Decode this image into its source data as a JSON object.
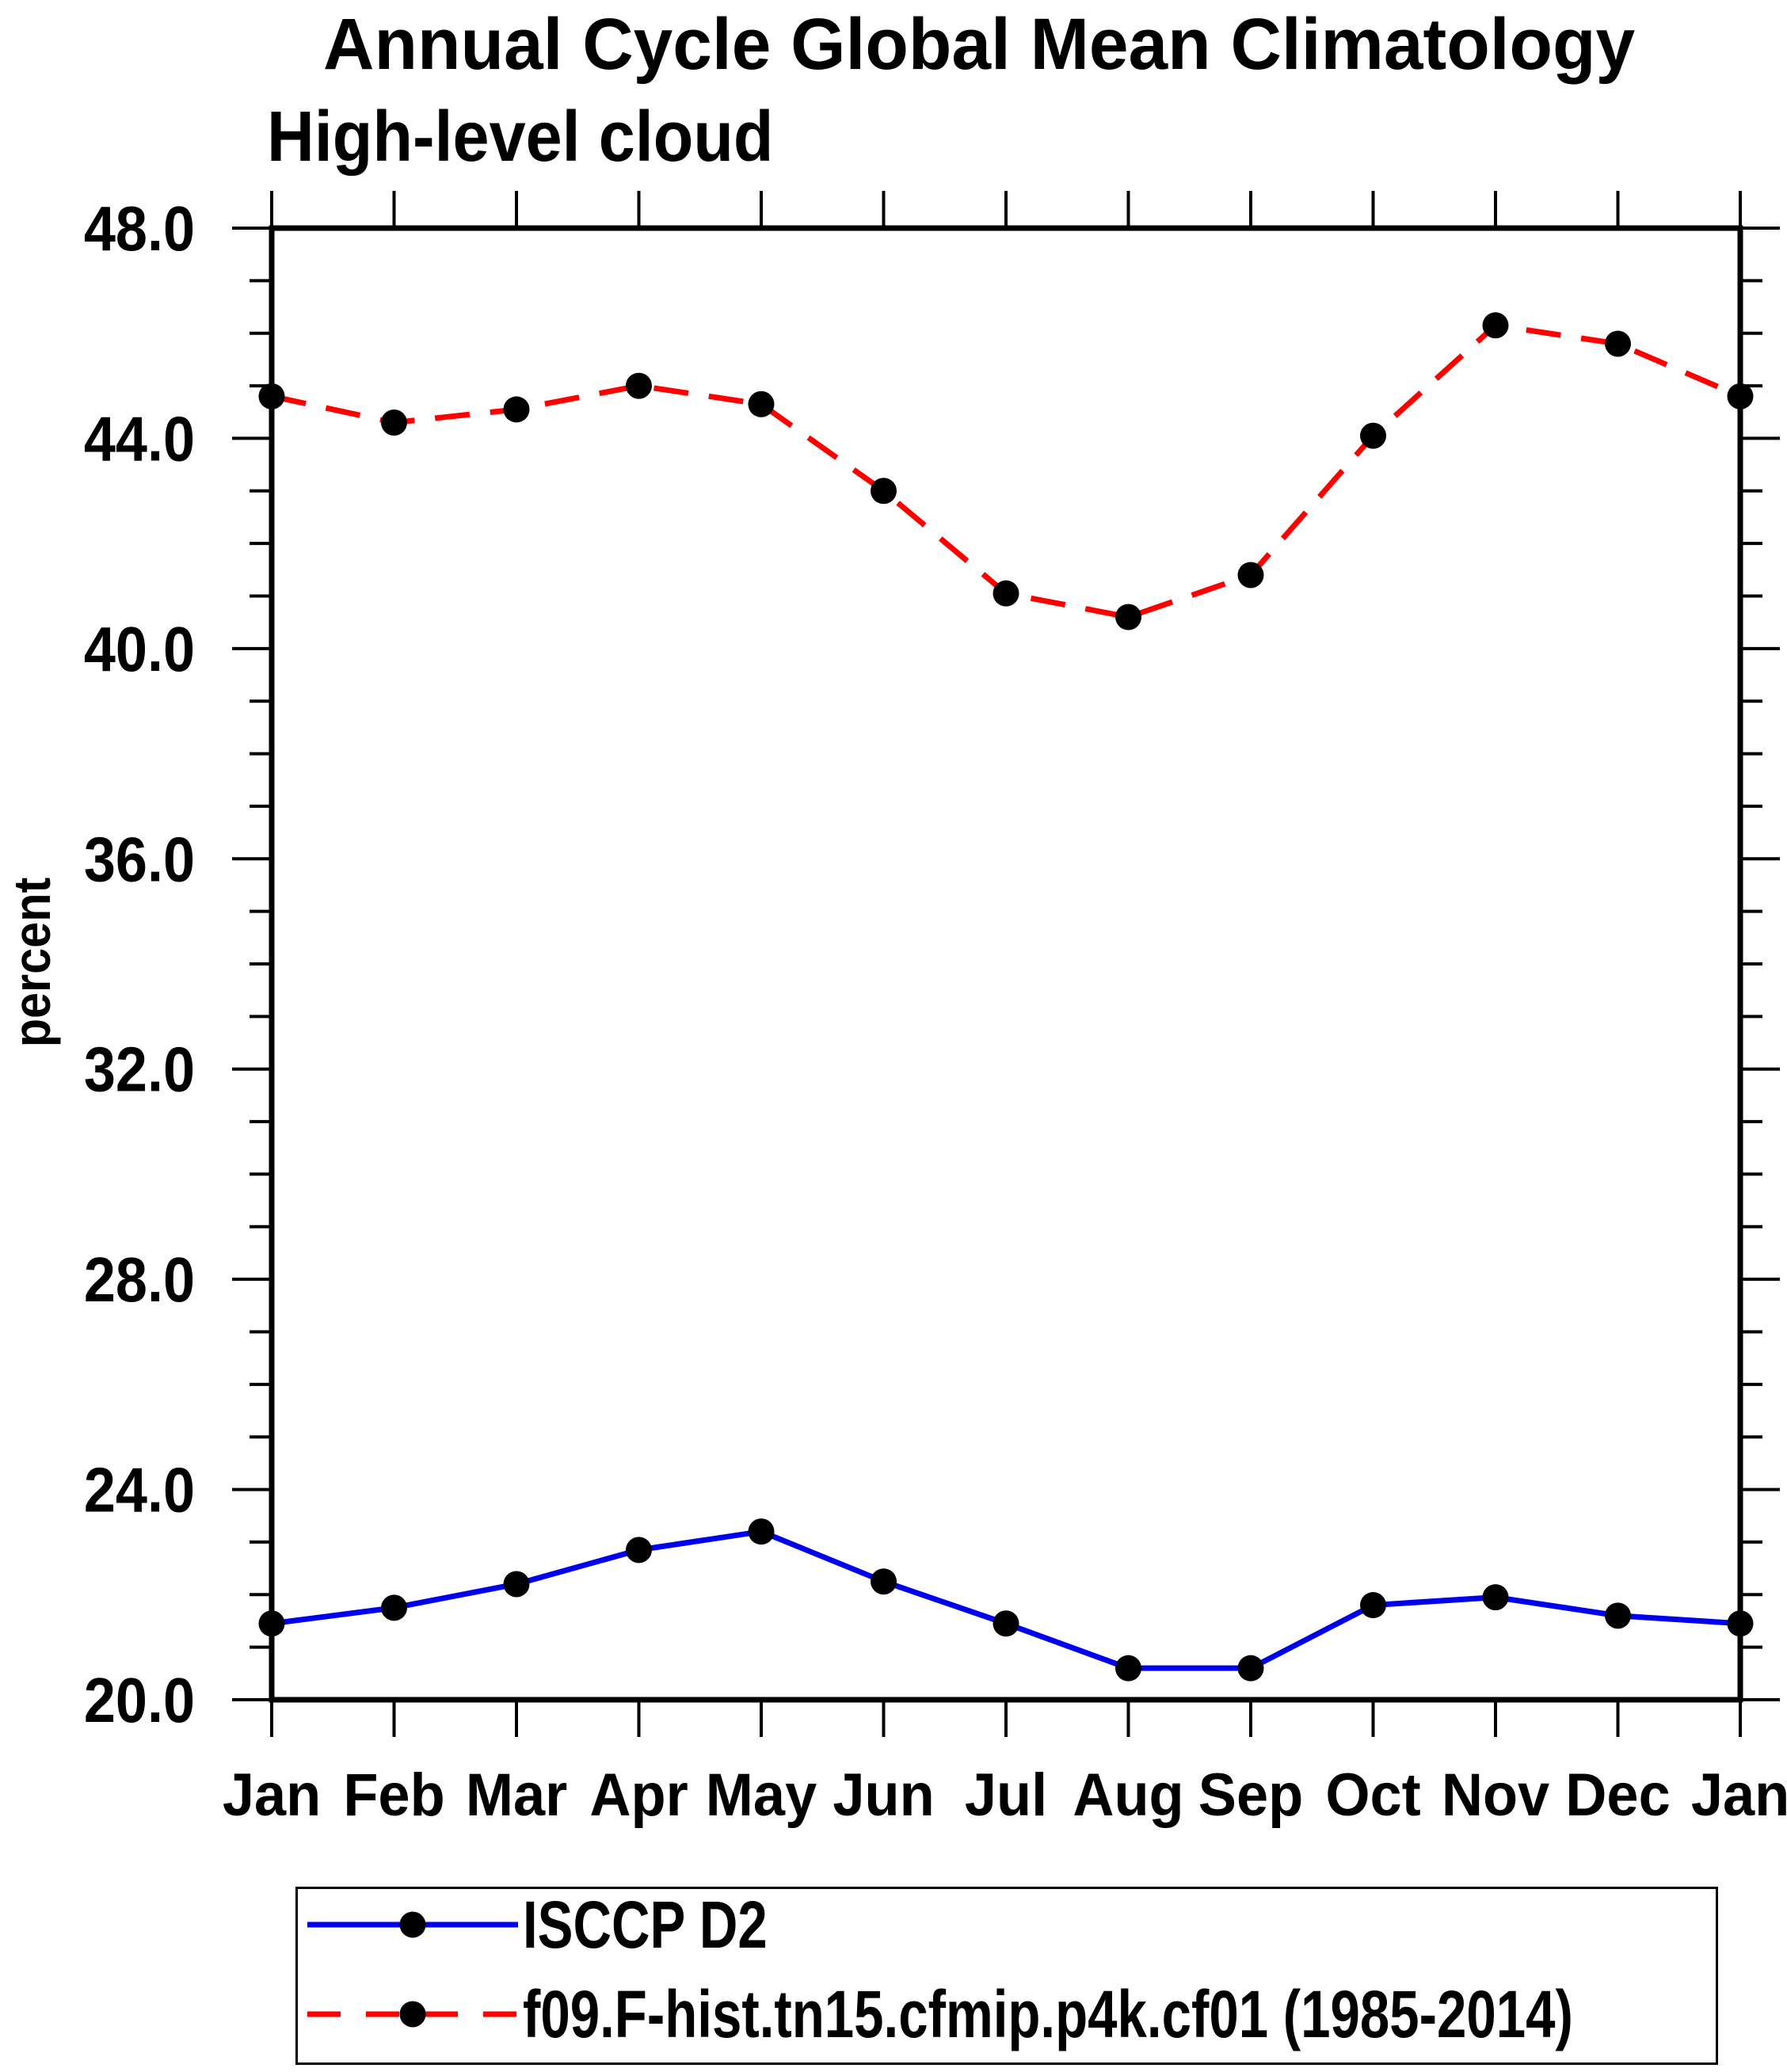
{
  "chart_data": {
    "type": "line",
    "title": "Annual Cycle Global Mean Climatology",
    "subtitle": "High-level cloud",
    "xlabel": "",
    "ylabel": "percent",
    "categories": [
      "Jan",
      "Feb",
      "Mar",
      "Apr",
      "May",
      "Jun",
      "Jul",
      "Aug",
      "Sep",
      "Oct",
      "Nov",
      "Dec",
      "Jan"
    ],
    "ylim": [
      20.0,
      48.0
    ],
    "ytick_major_step": 4,
    "ytick_minor_step": 1,
    "ytick_labels": [
      "20.0",
      "24.0",
      "28.0",
      "32.0",
      "36.0",
      "40.0",
      "44.0",
      "48.0"
    ],
    "grid": false,
    "legend_position": "bottom",
    "marker_color": "#000000",
    "axis_color": "#000000",
    "series": [
      {
        "name": "ISCCP D2",
        "color": "#0000ee",
        "line_style": "solid",
        "marker": "circle",
        "values": [
          21.45,
          21.75,
          22.2,
          22.85,
          23.2,
          22.25,
          21.45,
          20.6,
          20.6,
          21.8,
          21.95,
          21.6,
          21.45
        ]
      },
      {
        "name": "f09.F-hist.tn15.cfmip.p4k.cf01 (1985-2014)",
        "color": "#ff0000",
        "line_style": "dashed",
        "marker": "circle",
        "values": [
          44.8,
          44.3,
          44.55,
          45.0,
          44.65,
          43.0,
          41.05,
          40.6,
          41.4,
          44.05,
          46.15,
          45.8,
          44.8
        ]
      }
    ]
  }
}
